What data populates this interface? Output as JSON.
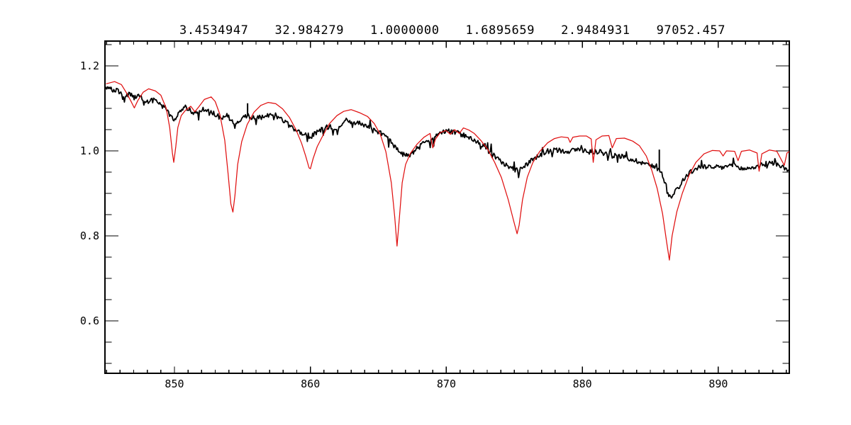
{
  "header": {
    "description": "fit parameter readout line"
  },
  "colors": {
    "background": "#ffffff",
    "frame": "#000000",
    "text": "#000000",
    "observed": "#000000",
    "model": "#e01010"
  },
  "chart_data": {
    "type": "line",
    "title": "",
    "xlabel": "",
    "ylabel": "",
    "grid": false,
    "legend": "none",
    "annotations": {
      "values": [
        "3.4534947",
        "32.984279",
        "1.0000000",
        "1.6895659",
        "2.9484931",
        "97052.457"
      ]
    },
    "xlim": [
      844.89,
      895.22
    ],
    "ylim": [
      0.4767,
      1.2583
    ],
    "x_axis": {
      "major_ticks": [
        850,
        860,
        870,
        880,
        890
      ],
      "major_labels": [
        "850",
        "860",
        "870",
        "880",
        "890"
      ],
      "minor_step": 1
    },
    "y_axis": {
      "major_ticks": [
        0.6,
        0.8,
        1.0,
        1.2
      ],
      "major_labels": [
        "0.6",
        "0.8",
        "1.0",
        "1.2"
      ],
      "minor_step": 0.05
    },
    "series": [
      {
        "name": "observed-spectrum",
        "color": "#000000",
        "width": 1.8,
        "noise": {
          "seed": 987654321,
          "amplitude": 0.012,
          "spike_chance": 0.08,
          "spike_amplitude": 0.034,
          "sample_step": 0.065
        },
        "spikes": [
          [
            855.38,
            1.112
          ],
          [
            885.66,
            1.003
          ]
        ],
        "anchors": [
          [
            845.0,
            1.148
          ],
          [
            845.4,
            1.143
          ],
          [
            845.9,
            1.14
          ],
          [
            846.3,
            1.122
          ],
          [
            846.7,
            1.136
          ],
          [
            847.05,
            1.124
          ],
          [
            847.4,
            1.132
          ],
          [
            848.0,
            1.115
          ],
          [
            848.65,
            1.121
          ],
          [
            849.3,
            1.102
          ],
          [
            849.75,
            1.088
          ],
          [
            850.05,
            1.068
          ],
          [
            850.35,
            1.093
          ],
          [
            850.8,
            1.104
          ],
          [
            851.5,
            1.086
          ],
          [
            852.2,
            1.098
          ],
          [
            852.7,
            1.093
          ],
          [
            853.3,
            1.077
          ],
          [
            853.9,
            1.085
          ],
          [
            854.35,
            1.062
          ],
          [
            854.8,
            1.074
          ],
          [
            855.35,
            1.083
          ],
          [
            855.9,
            1.076
          ],
          [
            856.6,
            1.081
          ],
          [
            857.4,
            1.085
          ],
          [
            858.0,
            1.071
          ],
          [
            858.7,
            1.052
          ],
          [
            859.4,
            1.042
          ],
          [
            859.95,
            1.031
          ],
          [
            860.6,
            1.047
          ],
          [
            861.3,
            1.057
          ],
          [
            862.0,
            1.051
          ],
          [
            862.6,
            1.071
          ],
          [
            863.3,
            1.067
          ],
          [
            864.0,
            1.061
          ],
          [
            864.7,
            1.051
          ],
          [
            865.4,
            1.037
          ],
          [
            866.0,
            1.018
          ],
          [
            866.6,
            0.995
          ],
          [
            867.2,
            0.988
          ],
          [
            867.8,
            1.004
          ],
          [
            868.5,
            1.021
          ],
          [
            869.3,
            1.036
          ],
          [
            870.0,
            1.047
          ],
          [
            870.8,
            1.042
          ],
          [
            871.6,
            1.034
          ],
          [
            872.4,
            1.019
          ],
          [
            873.2,
            0.999
          ],
          [
            874.0,
            0.974
          ],
          [
            874.7,
            0.961
          ],
          [
            875.3,
            0.953
          ],
          [
            875.9,
            0.969
          ],
          [
            876.6,
            0.984
          ],
          [
            877.4,
            0.999
          ],
          [
            878.2,
            1.002
          ],
          [
            879.0,
            0.999
          ],
          [
            879.8,
            1.004
          ],
          [
            880.6,
            0.997
          ],
          [
            881.4,
            0.999
          ],
          [
            882.2,
            0.991
          ],
          [
            883.0,
            0.986
          ],
          [
            883.8,
            0.978
          ],
          [
            884.6,
            0.971
          ],
          [
            885.3,
            0.961
          ],
          [
            885.75,
            0.955
          ],
          [
            886.1,
            0.925
          ],
          [
            886.45,
            0.889
          ],
          [
            886.9,
            0.909
          ],
          [
            887.4,
            0.931
          ],
          [
            888.0,
            0.951
          ],
          [
            888.7,
            0.964
          ],
          [
            889.5,
            0.961
          ],
          [
            890.3,
            0.961
          ],
          [
            891.0,
            0.967
          ],
          [
            891.8,
            0.957
          ],
          [
            892.6,
            0.961
          ],
          [
            893.4,
            0.969
          ],
          [
            894.2,
            0.971
          ],
          [
            894.8,
            0.961
          ],
          [
            895.25,
            0.954
          ]
        ]
      },
      {
        "name": "model-spectrum",
        "color": "#e01010",
        "width": 1.25,
        "anchors": [
          [
            845.0,
            1.158
          ],
          [
            845.6,
            1.163
          ],
          [
            846.1,
            1.156
          ],
          [
            846.5,
            1.135
          ],
          [
            846.8,
            1.117
          ],
          [
            847.05,
            1.101
          ],
          [
            847.3,
            1.118
          ],
          [
            847.7,
            1.138
          ],
          [
            848.1,
            1.146
          ],
          [
            848.6,
            1.141
          ],
          [
            849.0,
            1.131
          ],
          [
            849.4,
            1.1
          ],
          [
            849.65,
            1.055
          ],
          [
            849.85,
            0.995
          ],
          [
            849.95,
            0.973
          ],
          [
            850.1,
            1.01
          ],
          [
            850.25,
            1.055
          ],
          [
            850.5,
            1.083
          ],
          [
            850.8,
            1.095
          ],
          [
            851.2,
            1.105
          ],
          [
            851.5,
            1.092
          ],
          [
            851.8,
            1.104
          ],
          [
            852.2,
            1.121
          ],
          [
            852.7,
            1.127
          ],
          [
            853.0,
            1.116
          ],
          [
            853.35,
            1.085
          ],
          [
            853.7,
            1.025
          ],
          [
            853.95,
            0.945
          ],
          [
            854.15,
            0.875
          ],
          [
            854.3,
            0.856
          ],
          [
            854.45,
            0.895
          ],
          [
            854.65,
            0.968
          ],
          [
            854.95,
            1.022
          ],
          [
            855.35,
            1.062
          ],
          [
            855.85,
            1.091
          ],
          [
            856.35,
            1.107
          ],
          [
            856.9,
            1.114
          ],
          [
            857.45,
            1.111
          ],
          [
            857.95,
            1.099
          ],
          [
            858.45,
            1.079
          ],
          [
            858.95,
            1.049
          ],
          [
            859.35,
            1.018
          ],
          [
            859.65,
            0.988
          ],
          [
            859.9,
            0.96
          ],
          [
            860.0,
            0.958
          ],
          [
            860.2,
            0.982
          ],
          [
            860.5,
            1.01
          ],
          [
            860.9,
            1.035
          ],
          [
            861.4,
            1.064
          ],
          [
            861.95,
            1.083
          ],
          [
            862.45,
            1.093
          ],
          [
            863.0,
            1.097
          ],
          [
            863.6,
            1.09
          ],
          [
            864.2,
            1.081
          ],
          [
            864.7,
            1.064
          ],
          [
            865.15,
            1.038
          ],
          [
            865.55,
            0.998
          ],
          [
            865.95,
            0.925
          ],
          [
            866.2,
            0.845
          ],
          [
            866.37,
            0.776
          ],
          [
            866.55,
            0.845
          ],
          [
            866.75,
            0.925
          ],
          [
            867.0,
            0.968
          ],
          [
            867.35,
            0.994
          ],
          [
            867.85,
            1.016
          ],
          [
            868.35,
            1.032
          ],
          [
            868.8,
            1.041
          ],
          [
            869.0,
            1.007
          ],
          [
            869.2,
            1.028
          ],
          [
            869.55,
            1.043
          ],
          [
            869.95,
            1.048
          ],
          [
            870.3,
            1.039
          ],
          [
            870.6,
            1.05
          ],
          [
            870.95,
            1.041
          ],
          [
            871.25,
            1.054
          ],
          [
            871.65,
            1.049
          ],
          [
            872.05,
            1.041
          ],
          [
            872.55,
            1.024
          ],
          [
            873.05,
            1.003
          ],
          [
            873.55,
            0.973
          ],
          [
            874.05,
            0.937
          ],
          [
            874.55,
            0.885
          ],
          [
            874.95,
            0.835
          ],
          [
            875.2,
            0.805
          ],
          [
            875.35,
            0.825
          ],
          [
            875.6,
            0.885
          ],
          [
            875.95,
            0.938
          ],
          [
            876.35,
            0.972
          ],
          [
            876.85,
            0.998
          ],
          [
            877.45,
            1.019
          ],
          [
            877.95,
            1.029
          ],
          [
            878.45,
            1.033
          ],
          [
            878.95,
            1.031
          ],
          [
            879.1,
            1.02
          ],
          [
            879.3,
            1.032
          ],
          [
            879.8,
            1.035
          ],
          [
            880.3,
            1.035
          ],
          [
            880.65,
            1.028
          ],
          [
            880.8,
            0.973
          ],
          [
            881.0,
            1.026
          ],
          [
            881.45,
            1.035
          ],
          [
            881.95,
            1.036
          ],
          [
            882.2,
            1.007
          ],
          [
            882.5,
            1.029
          ],
          [
            883.1,
            1.03
          ],
          [
            883.7,
            1.023
          ],
          [
            884.2,
            1.012
          ],
          [
            884.7,
            0.988
          ],
          [
            885.1,
            0.955
          ],
          [
            885.5,
            0.912
          ],
          [
            885.9,
            0.852
          ],
          [
            886.2,
            0.785
          ],
          [
            886.4,
            0.743
          ],
          [
            886.6,
            0.8
          ],
          [
            886.95,
            0.857
          ],
          [
            887.35,
            0.9
          ],
          [
            887.85,
            0.943
          ],
          [
            888.35,
            0.973
          ],
          [
            888.95,
            0.993
          ],
          [
            889.55,
            1.001
          ],
          [
            890.1,
            1.0
          ],
          [
            890.35,
            0.988
          ],
          [
            890.6,
            1.0
          ],
          [
            891.2,
            0.999
          ],
          [
            891.45,
            0.977
          ],
          [
            891.7,
            0.999
          ],
          [
            892.3,
            1.002
          ],
          [
            892.85,
            0.995
          ],
          [
            893.0,
            0.952
          ],
          [
            893.2,
            0.993
          ],
          [
            893.75,
            1.002
          ],
          [
            894.3,
            0.999
          ],
          [
            894.85,
            0.966
          ],
          [
            895.05,
            0.995
          ],
          [
            895.25,
            0.999
          ]
        ]
      }
    ]
  }
}
